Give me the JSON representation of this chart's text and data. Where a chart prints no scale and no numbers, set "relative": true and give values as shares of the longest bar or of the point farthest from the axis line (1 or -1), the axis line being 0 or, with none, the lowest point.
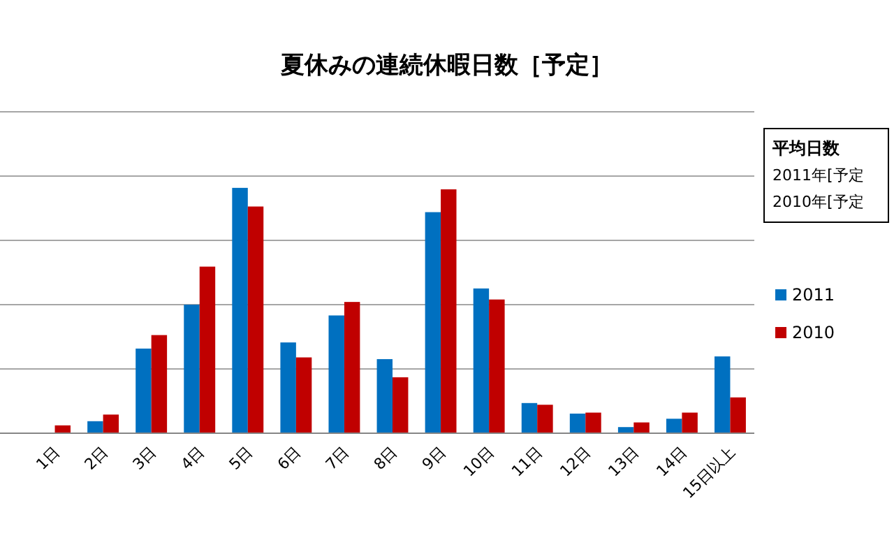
{
  "chart_data": {
    "type": "bar",
    "title": "夏休みの連続休暇日数［予定］",
    "relative": true,
    "grid": "y",
    "legend": "right",
    "categories": [
      "1日",
      "2日",
      "3日",
      "4日",
      "5日",
      "6日",
      "7日",
      "8日",
      "9日",
      "10日",
      "11日",
      "12日",
      "13日",
      "14日",
      "15日以上"
    ],
    "series": [
      {
        "name": "2011",
        "color": "#0070c0",
        "values": [
          0,
          0.049,
          0.345,
          0.524,
          1,
          0.37,
          0.48,
          0.302,
          0.901,
          0.59,
          0.123,
          0.08,
          0.025,
          0.059,
          0.313
        ]
      },
      {
        "name": "2010",
        "color": "#c00000",
        "values": [
          0.032,
          0.076,
          0.4,
          0.679,
          0.924,
          0.309,
          0.535,
          0.228,
          0.994,
          0.545,
          0.116,
          0.084,
          0.044,
          0.084,
          0.146
        ]
      }
    ],
    "annotations": [
      "平均日数",
      "2011年[予定",
      "2010年[予定"
    ]
  }
}
